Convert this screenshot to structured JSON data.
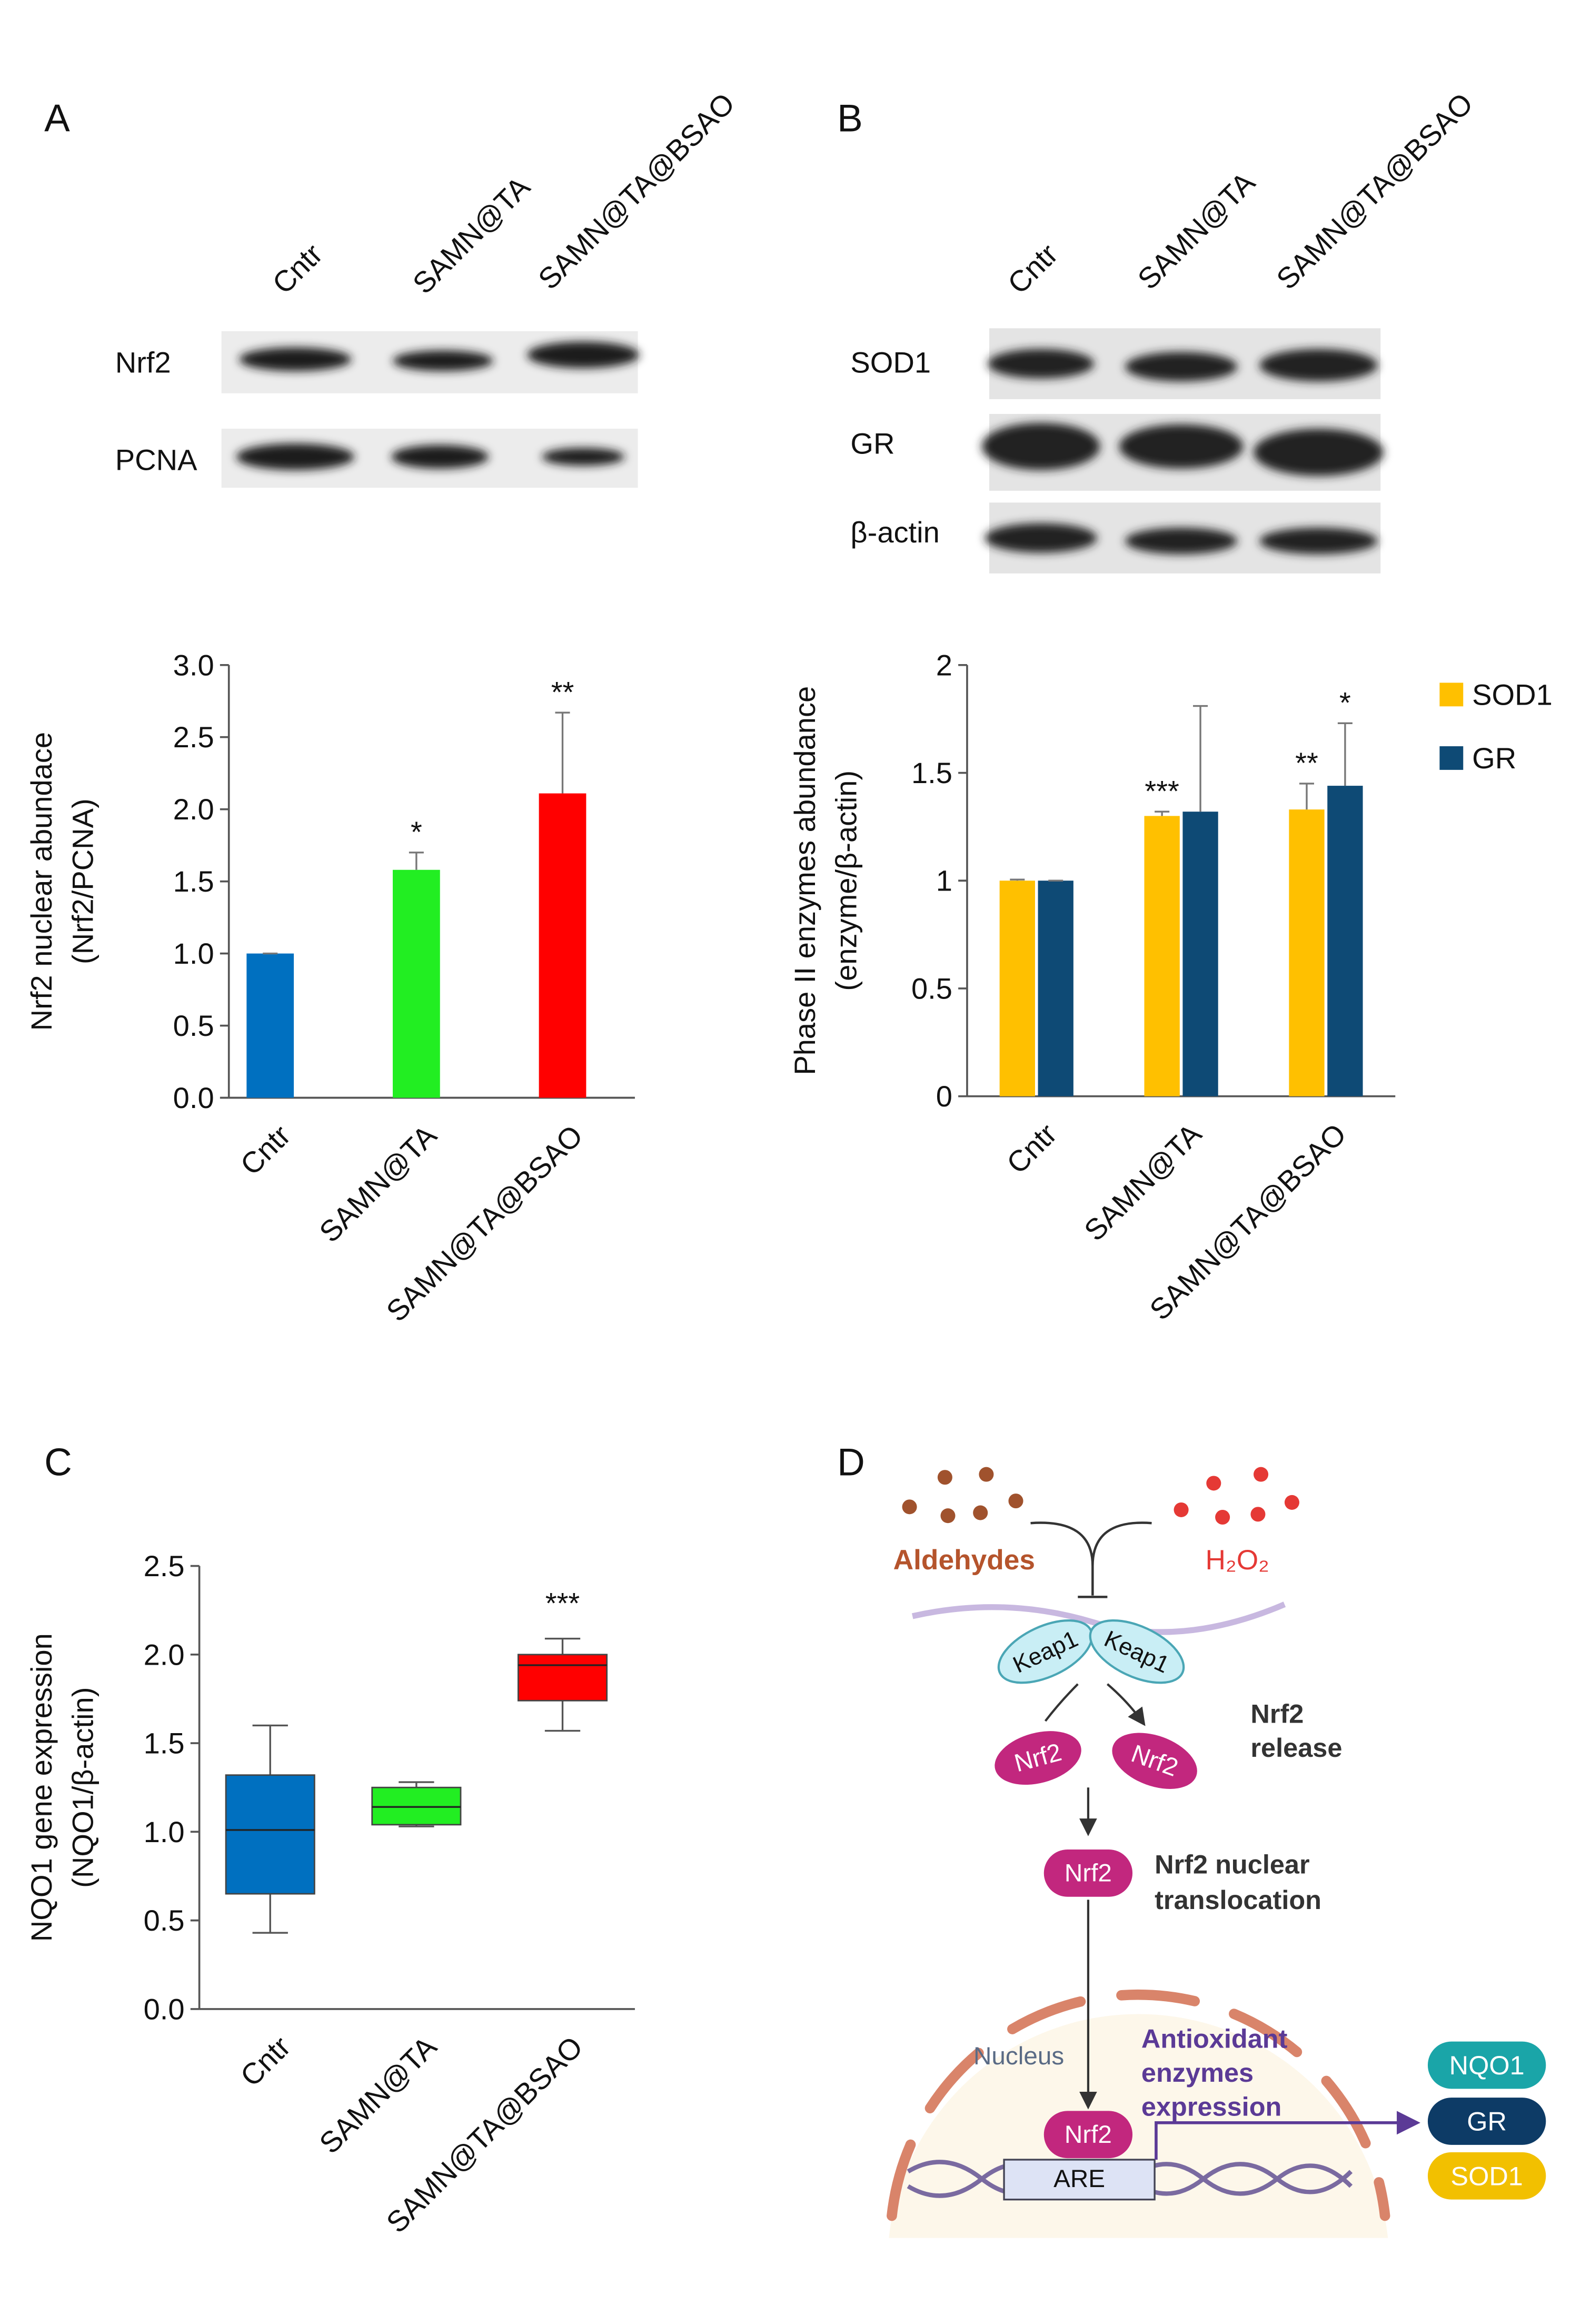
{
  "panel_labels": [
    "A",
    "B",
    "C",
    "D"
  ],
  "blots": [
    {
      "columns": [
        "Cntr",
        "SAMN@TA",
        "SAMN@TA@BSAO"
      ],
      "rows": [
        "Nrf2",
        "PCNA"
      ]
    },
    {
      "columns": [
        "Cntr",
        "SAMN@TA",
        "SAMN@TA@BSAO"
      ],
      "rows": [
        "SOD1",
        "GR",
        "β-actin"
      ]
    }
  ],
  "chart_data": [
    {
      "type": "bar",
      "ylabel": [
        "Nrf2 nuclear abundace",
        "(Nrf2/PCNA)"
      ],
      "categories": [
        "Cntr",
        "SAMN@TA",
        "SAMN@TA@BSAO"
      ],
      "values": [
        1.0,
        1.58,
        2.11
      ],
      "errors": [
        0,
        0.12,
        0.56
      ],
      "annotations": [
        null,
        "*",
        "**"
      ],
      "colors": [
        "#0070c0",
        "#22ee22",
        "#ff0000"
      ],
      "ylim": [
        0,
        3
      ],
      "yticks": [
        {
          "value": 0,
          "label": "0.0"
        },
        0.5,
        {
          "value": 1,
          "label": "1.0"
        },
        1.5,
        {
          "value": 2,
          "label": "2.0"
        },
        2.5,
        {
          "value": 3,
          "label": "3.0"
        }
      ]
    },
    {
      "type": "bar",
      "ylabel": [
        "Phase II enzymes abundance",
        "(enzyme/β-actin)"
      ],
      "categories": [
        "Cntr",
        "SAMN@TA",
        "SAMN@TA@BSAO"
      ],
      "legend": "right",
      "series": [
        {
          "name": "SOD1",
          "color": "#ffc000",
          "values": [
            1.0,
            1.3,
            1.33
          ],
          "errors": [
            0.005,
            0.02,
            0.12
          ],
          "annotations": [
            null,
            "***",
            "**"
          ]
        },
        {
          "name": "GR",
          "color": "#0e4a75",
          "values": [
            1.0,
            1.32,
            1.44
          ],
          "errors": [
            0,
            0.49,
            0.29
          ],
          "annotations": [
            null,
            null,
            "*"
          ]
        }
      ],
      "ylim": [
        0,
        2
      ],
      "yticks": [
        0,
        0.5,
        1,
        1.5,
        2
      ]
    },
    {
      "type": "box",
      "ylabel": [
        "NQO1 gene expression",
        "(NQO1/β-actin)"
      ],
      "categories": [
        "Cntr",
        "SAMN@TA",
        "SAMN@TA@BSAO"
      ],
      "colors": [
        "#0070c0",
        "#22ee22",
        "#ff0000"
      ],
      "boxes": [
        {
          "min": 0.43,
          "q1": 0.65,
          "median": 1.01,
          "q3": 1.32,
          "max": 1.6
        },
        {
          "min": 1.03,
          "q1": 1.04,
          "median": 1.14,
          "q3": 1.25,
          "max": 1.28
        },
        {
          "min": 1.57,
          "q1": 1.74,
          "median": 1.94,
          "q3": 2.0,
          "max": 2.09
        }
      ],
      "annotations": [
        null,
        null,
        "***"
      ],
      "ylim": [
        0,
        2.5
      ],
      "yticks": [
        {
          "value": 0,
          "label": "0.0"
        },
        0.5,
        {
          "value": 1,
          "label": "1.0"
        },
        1.5,
        {
          "value": 2,
          "label": "2.0"
        },
        2.5
      ]
    }
  ],
  "diagram": {
    "aldehydes": "Aldehydes",
    "h2o2": "H₂O₂",
    "keap1": [
      "Keap1",
      "Keap1"
    ],
    "nrf2": [
      "Nrf2",
      "Nrf2",
      "Nrf2",
      "Nrf2"
    ],
    "release": [
      "Nrf2",
      "release"
    ],
    "translocation": [
      "Nrf2 nuclear",
      "translocation"
    ],
    "nucleus": "Nucleus",
    "expression": [
      "Antioxidant",
      "enzymes",
      "expression"
    ],
    "are": "ARE",
    "products": [
      "NQO1",
      "GR",
      "SOD1"
    ]
  }
}
